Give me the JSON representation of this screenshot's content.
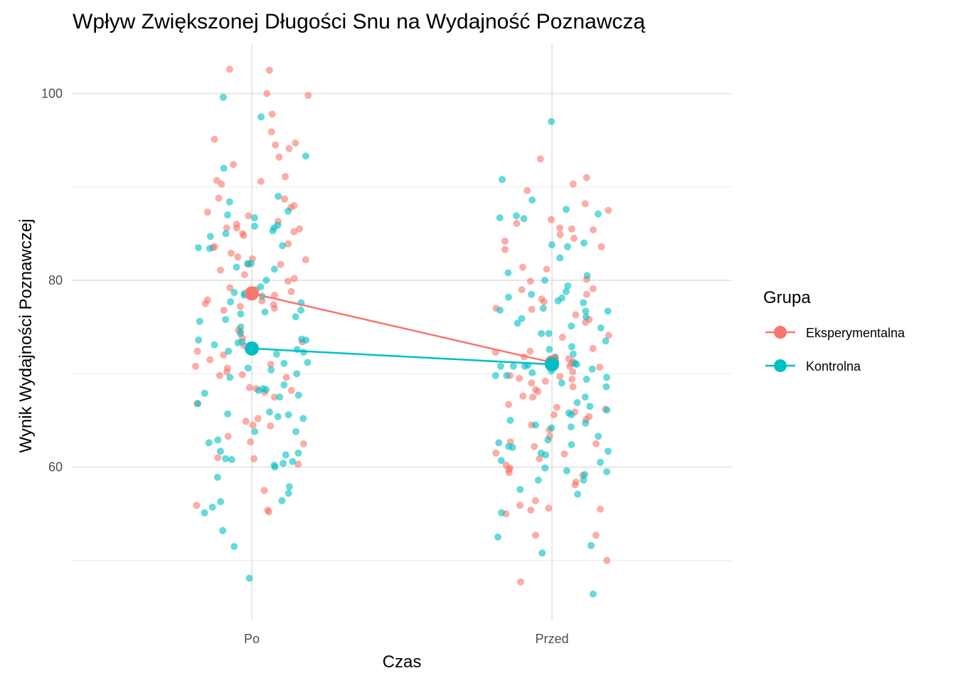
{
  "chart_data": {
    "type": "scatter",
    "title": "Wpływ Zwiększonej Długości Snu na Wydajność Poznawczą",
    "xlabel": "Czas",
    "ylabel": "Wynik Wydajności Poznawczej",
    "categories": [
      "Po",
      "Przed"
    ],
    "yticks": [
      60,
      80,
      100
    ],
    "ylim": [
      45,
      105
    ],
    "grid": true,
    "legend": {
      "title": "Grupa",
      "position": "right",
      "entries": [
        "Eksperymentalna",
        "Kontrolna"
      ]
    },
    "series": [
      {
        "name": "Eksperymentalna",
        "color": "#F8766D",
        "means": [
          78.6,
          71.2
        ],
        "points": {
          "Po": [
            102.5,
            102.6,
            100.0,
            99.8,
            97.8,
            95.9,
            95.1,
            94.7,
            94.5,
            94.1,
            93.2,
            92.4,
            91.1,
            90.7,
            90.6,
            90.3,
            88.8,
            88.7,
            88.0,
            87.8,
            87.3,
            86.9,
            86.3,
            86.0,
            85.6,
            85.6,
            85.5,
            85.2,
            85.0,
            84.8,
            83.9,
            83.6,
            83.5,
            82.9,
            82.5,
            82.3,
            82.2,
            81.7,
            81.7,
            81.1,
            80.6,
            80.2,
            79.9,
            79.2,
            79.0,
            78.8,
            78.4,
            77.9,
            77.8,
            77.5,
            77.4,
            77.2,
            77.0,
            76.8,
            74.7,
            74.5,
            73.8,
            73.4,
            73.0,
            72.4,
            72.0,
            71.5,
            71.0,
            70.8,
            70.6,
            70.2,
            69.9,
            69.8,
            69.6,
            68.5,
            68.4,
            68.2,
            68.0,
            67.5,
            66.8,
            65.2,
            64.9,
            64.5,
            64.4,
            63.3,
            62.7,
            62.5,
            61.0,
            60.9,
            60.3,
            57.5,
            55.9,
            55.4,
            55.2
          ],
          "Przed": [
            93.0,
            91.0,
            90.3,
            89.6,
            88.2,
            87.5,
            86.5,
            86.1,
            85.6,
            85.5,
            85.4,
            84.9,
            84.5,
            84.2,
            83.6,
            83.3,
            81.4,
            81.2,
            80.1,
            79.9,
            79.1,
            79.0,
            78.5,
            78.0,
            77.7,
            77.0,
            76.9,
            76.3,
            75.8,
            75.5,
            74.1,
            73.9,
            72.7,
            72.4,
            72.3,
            71.8,
            71.8,
            71.6,
            71.3,
            71.1,
            70.9,
            70.8,
            70.7,
            70.2,
            69.8,
            69.7,
            69.5,
            69.4,
            69.2,
            69.0,
            68.6,
            68.3,
            68.1,
            67.6,
            67.5,
            66.7,
            66.4,
            66.2,
            65.9,
            65.6,
            65.4,
            65.1,
            64.5,
            64.0,
            63.3,
            62.7,
            62.5,
            62.2,
            61.5,
            61.4,
            60.9,
            60.2,
            59.9,
            59.7,
            59.4,
            59.1,
            58.4,
            58.1,
            56.4,
            55.9,
            55.6,
            55.5,
            55.4,
            55.0,
            52.7,
            52.7,
            50.0,
            47.7
          ]
        }
      },
      {
        "name": "Kontrolna",
        "color": "#00BFC4",
        "means": [
          72.7,
          71.0
        ],
        "points": {
          "Po": [
            99.6,
            97.5,
            93.3,
            92.0,
            89.0,
            88.4,
            87.4,
            87.0,
            86.7,
            85.9,
            85.8,
            85.6,
            85.3,
            85.0,
            84.7,
            83.7,
            83.5,
            83.4,
            81.8,
            81.8,
            81.4,
            81.2,
            80.0,
            79.3,
            78.7,
            78.6,
            78.4,
            78.3,
            77.7,
            77.6,
            76.8,
            76.6,
            76.4,
            76.1,
            75.8,
            75.6,
            75.0,
            74.3,
            73.7,
            73.6,
            73.6,
            73.4,
            73.3,
            73.1,
            72.6,
            72.4,
            72.3,
            72.1,
            71.2,
            71.1,
            70.6,
            70.4,
            70.0,
            69.6,
            68.8,
            68.4,
            68.3,
            68.2,
            67.9,
            67.7,
            67.5,
            66.8,
            65.9,
            65.7,
            65.6,
            65.4,
            65.2,
            63.8,
            63.8,
            62.9,
            62.6,
            61.7,
            61.5,
            61.3,
            60.9,
            60.8,
            60.6,
            60.4,
            60.2,
            60.0,
            58.9,
            57.9,
            57.2,
            56.4,
            56.3,
            55.7,
            55.1,
            53.2,
            51.5,
            48.1
          ],
          "Przed": [
            97.0,
            90.8,
            88.6,
            87.6,
            87.1,
            86.9,
            86.7,
            86.6,
            84.0,
            83.8,
            83.6,
            82.4,
            80.8,
            80.5,
            80.0,
            79.4,
            78.8,
            78.5,
            78.2,
            78.1,
            77.8,
            77.6,
            77.0,
            76.8,
            76.7,
            76.7,
            76.1,
            75.9,
            75.4,
            75.1,
            74.9,
            74.3,
            74.3,
            73.5,
            72.9,
            72.6,
            72.1,
            71.7,
            71.6,
            71.1,
            71.0,
            70.9,
            70.8,
            70.8,
            70.8,
            70.5,
            70.3,
            70.1,
            69.8,
            69.8,
            69.6,
            69.4,
            69.0,
            68.6,
            67.5,
            66.9,
            66.5,
            66.1,
            65.8,
            65.6,
            65.0,
            64.7,
            64.5,
            64.3,
            64.2,
            63.3,
            62.9,
            62.6,
            62.4,
            62.2,
            62.1,
            61.7,
            61.5,
            61.3,
            60.7,
            60.5,
            59.9,
            59.6,
            59.5,
            59.2,
            58.6,
            58.6,
            57.6,
            57.1,
            55.1,
            52.5,
            51.6,
            50.8,
            46.4
          ]
        }
      }
    ]
  }
}
